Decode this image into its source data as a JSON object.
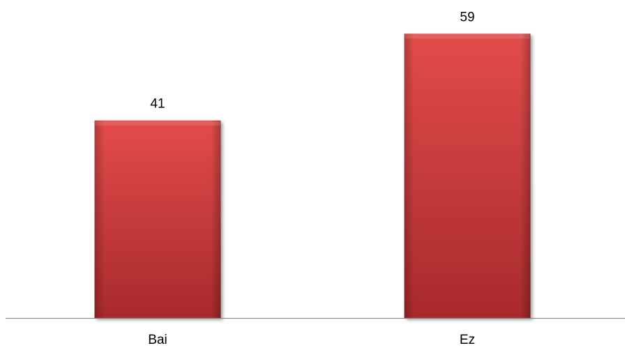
{
  "chart_data": {
    "type": "bar",
    "categories": [
      "Bai",
      "Ez"
    ],
    "values": [
      41,
      59
    ],
    "data_labels": [
      "41",
      "59"
    ],
    "title": "",
    "xlabel": "",
    "ylabel": "",
    "ylim": [
      0,
      66
    ],
    "grid": false,
    "legend": "none",
    "axis_line_color": "#8c8c8c",
    "bar_color": "#c0393b",
    "bar_color_light": "#e24c4b",
    "bar_color_dark": "#a82a2c"
  }
}
